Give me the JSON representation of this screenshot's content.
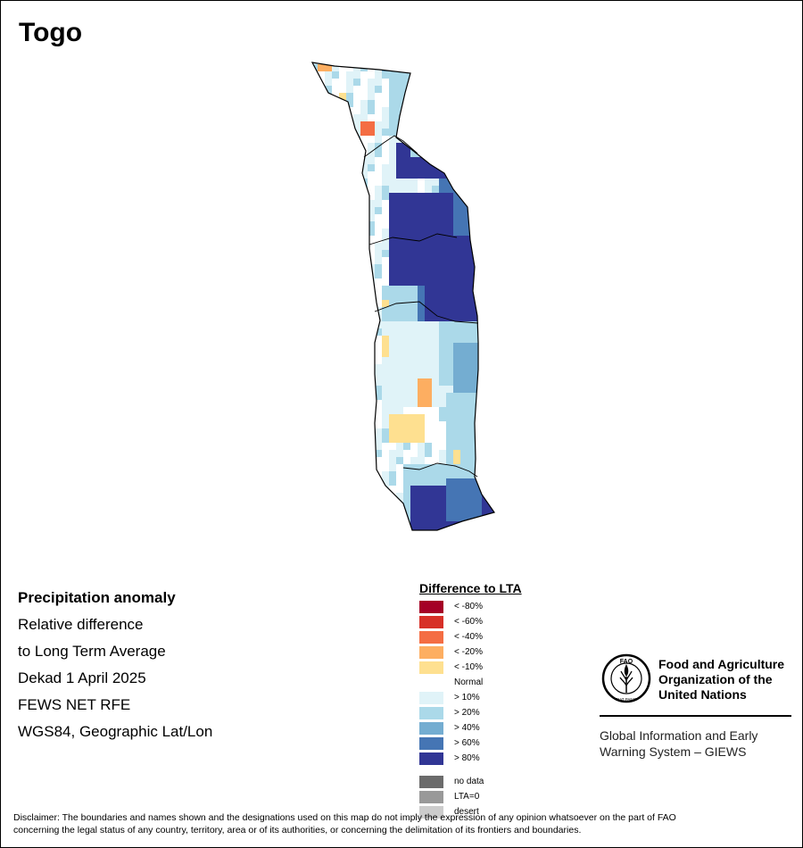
{
  "title": "Togo",
  "info": {
    "heading": "Precipitation anomaly",
    "line1": "Relative difference",
    "line2": "to Long Term Average",
    "period": "Dekad 1 April 2025",
    "source": "FEWS NET RFE",
    "projection": "WGS84, Geographic Lat/Lon"
  },
  "legend": {
    "title": "Difference to LTA",
    "items": [
      {
        "label": "< -80%",
        "color": "#a50026"
      },
      {
        "label": "< -60%",
        "color": "#d73027"
      },
      {
        "label": "< -40%",
        "color": "#f46d43"
      },
      {
        "label": "< -20%",
        "color": "#fdae61"
      },
      {
        "label": "< -10%",
        "color": "#fee090"
      },
      {
        "label": "Normal",
        "color": "#ffffff"
      },
      {
        "label": "> 10%",
        "color": "#e0f3f8"
      },
      {
        "label": "> 20%",
        "color": "#abd9e9"
      },
      {
        "label": "> 40%",
        "color": "#74add1"
      },
      {
        "label": "> 60%",
        "color": "#4575b4"
      },
      {
        "label": "> 80%",
        "color": "#313695"
      }
    ],
    "extra": [
      {
        "label": "no data",
        "color": "#6b6b6b"
      },
      {
        "label": "LTA=0",
        "color": "#999999"
      },
      {
        "label": "desert",
        "color": "#cccccc"
      }
    ]
  },
  "org": {
    "line1": "Food and Agriculture",
    "line2": "Organization of the",
    "line3": "United Nations",
    "logo_text": "FAO",
    "logo_motto": "FIAT PANIS"
  },
  "giews": {
    "line1": "Global Information and Early",
    "line2": "Warning System – GIEWS"
  },
  "disclaimer": {
    "line1": "Disclaimer: The boundaries and names shown and the designations used on this map do not imply the expression of any opinion whatsoever on the part of FAO",
    "line2": "concerning the legal status of any country, territory, area or of its authorities, or concerning the delimitation of its frontiers and boundaries."
  }
}
